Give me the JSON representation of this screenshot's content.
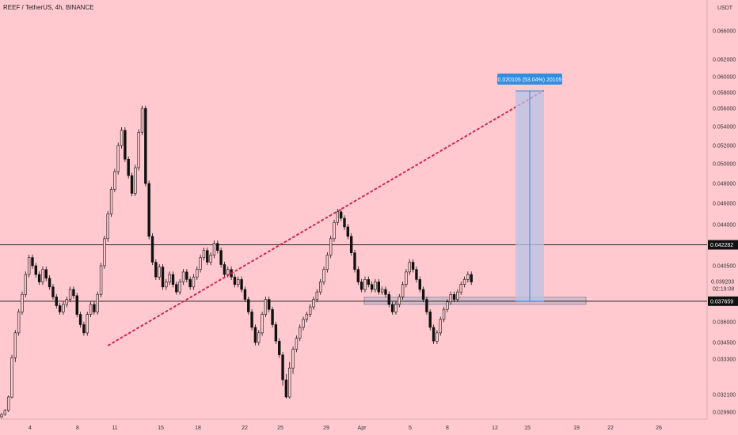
{
  "header": {
    "title": "REEF / TetherUS, 4h, BINANCE"
  },
  "colors": {
    "background": "#ffc9cf",
    "candle": "#111111",
    "trendline": "#d4224b",
    "measure_fill": "#b7c3e6",
    "measure_line": "#2f8fe0",
    "label_bg": "#2f8fe0",
    "support_box": "#c8b4c8"
  },
  "chart_data": {
    "type": "candlestick",
    "title": "REEF / TetherUS, 4h, BINANCE",
    "y_axis_unit": "USDT",
    "y_ticks": [
      0.0299,
      0.0321,
      0.0333,
      0.0345,
      0.036,
      0.0405,
      0.044,
      0.046,
      0.048,
      0.05,
      0.052,
      0.054,
      0.056,
      0.058,
      0.06,
      0.062,
      0.066
    ],
    "y_tick_labels": [
      "0.029900",
      "0.032100",
      "0.033300",
      "0.034500",
      "0.036000",
      "0.040500",
      "0.044000",
      "0.046000",
      "0.048000",
      "0.050000",
      "0.052000",
      "0.054000",
      "0.056000",
      "0.058000",
      "0.060000",
      "0.062000",
      "0.066000"
    ],
    "x_tick_labels": [
      "4",
      "8",
      "11",
      "15",
      "18",
      "22",
      "25",
      "29",
      "Apr",
      "5",
      "8",
      "12",
      "15",
      "19",
      "22",
      "26"
    ],
    "horizontal_levels": [
      {
        "value": 0.042282,
        "label": "0.042282"
      },
      {
        "value": 0.037659,
        "label": "0.037659"
      }
    ],
    "last_price": {
      "value": 0.039203,
      "label": "0.039203",
      "countdown": "02:19:08"
    },
    "measure_label": "0.020105 (53.04%) 20105",
    "trendline": {
      "from": {
        "date": "11",
        "price": 0.0343
      },
      "to": {
        "date": "16",
        "price": 0.0582
      }
    },
    "candles_close_path": [
      [
        0.0293,
        0.0296
      ],
      [
        0.0296,
        0.0301
      ],
      [
        0.0301,
        0.0318
      ],
      [
        0.0318,
        0.0334
      ],
      [
        0.0334,
        0.0352
      ],
      [
        0.0352,
        0.0368
      ],
      [
        0.0368,
        0.0382
      ],
      [
        0.0382,
        0.0398
      ],
      [
        0.0398,
        0.0412
      ],
      [
        0.0412,
        0.0405
      ],
      [
        0.0405,
        0.0398
      ],
      [
        0.0398,
        0.0392
      ],
      [
        0.0392,
        0.0402
      ],
      [
        0.0402,
        0.0395
      ],
      [
        0.0395,
        0.0388
      ],
      [
        0.0388,
        0.038
      ],
      [
        0.038,
        0.0373
      ],
      [
        0.0373,
        0.0368
      ],
      [
        0.0368,
        0.0374
      ],
      [
        0.0374,
        0.0378
      ],
      [
        0.0378,
        0.0386
      ],
      [
        0.0386,
        0.0381
      ],
      [
        0.0381,
        0.0366
      ],
      [
        0.0366,
        0.0358
      ],
      [
        0.0358,
        0.0352
      ],
      [
        0.0352,
        0.0366
      ],
      [
        0.0366,
        0.0374
      ],
      [
        0.0374,
        0.0368
      ],
      [
        0.0368,
        0.0382
      ],
      [
        0.0382,
        0.0405
      ],
      [
        0.0405,
        0.0428
      ],
      [
        0.0428,
        0.045
      ],
      [
        0.045,
        0.0474
      ],
      [
        0.0474,
        0.0492
      ],
      [
        0.0492,
        0.052
      ],
      [
        0.052,
        0.0536
      ],
      [
        0.0536,
        0.0505
      ],
      [
        0.0505,
        0.0488
      ],
      [
        0.0488,
        0.047
      ],
      [
        0.047,
        0.0496
      ],
      [
        0.0496,
        0.0534
      ],
      [
        0.0534,
        0.056
      ],
      [
        0.056,
        0.048
      ],
      [
        0.048,
        0.043
      ],
      [
        0.043,
        0.0408
      ],
      [
        0.0408,
        0.0396
      ],
      [
        0.0396,
        0.0404
      ],
      [
        0.0404,
        0.0388
      ],
      [
        0.0388,
        0.0392
      ],
      [
        0.0392,
        0.0398
      ],
      [
        0.0398,
        0.039
      ],
      [
        0.039,
        0.0384
      ],
      [
        0.0384,
        0.0392
      ],
      [
        0.0392,
        0.04
      ],
      [
        0.04,
        0.0394
      ],
      [
        0.0394,
        0.0388
      ],
      [
        0.0388,
        0.0396
      ],
      [
        0.0396,
        0.0402
      ],
      [
        0.0402,
        0.0412
      ],
      [
        0.0412,
        0.0418
      ],
      [
        0.0418,
        0.0408
      ],
      [
        0.0408,
        0.0414
      ],
      [
        0.0414,
        0.0424
      ],
      [
        0.0424,
        0.0418
      ],
      [
        0.0418,
        0.0406
      ],
      [
        0.0406,
        0.0398
      ],
      [
        0.0398,
        0.0402
      ],
      [
        0.0402,
        0.0396
      ],
      [
        0.0396,
        0.039
      ],
      [
        0.039,
        0.0394
      ],
      [
        0.0394,
        0.0386
      ],
      [
        0.0386,
        0.0378
      ],
      [
        0.0378,
        0.0368
      ],
      [
        0.0368,
        0.0356
      ],
      [
        0.0356,
        0.0345
      ],
      [
        0.0345,
        0.0352
      ],
      [
        0.0352,
        0.0366
      ],
      [
        0.0366,
        0.0378
      ],
      [
        0.0378,
        0.037
      ],
      [
        0.037,
        0.0358
      ],
      [
        0.0358,
        0.0346
      ],
      [
        0.0346,
        0.0336
      ],
      [
        0.0336,
        0.0326
      ],
      [
        0.0326,
        0.0318
      ],
      [
        0.0318,
        0.033
      ],
      [
        0.033,
        0.034
      ],
      [
        0.034,
        0.0348
      ],
      [
        0.0348,
        0.0356
      ],
      [
        0.0356,
        0.0362
      ],
      [
        0.0362,
        0.0366
      ],
      [
        0.0366,
        0.0372
      ],
      [
        0.0372,
        0.0378
      ],
      [
        0.0378,
        0.0384
      ],
      [
        0.0384,
        0.0392
      ],
      [
        0.0392,
        0.0402
      ],
      [
        0.0402,
        0.0414
      ],
      [
        0.0414,
        0.0428
      ],
      [
        0.0428,
        0.0442
      ],
      [
        0.0442,
        0.0452
      ],
      [
        0.0452,
        0.0446
      ],
      [
        0.0446,
        0.0438
      ],
      [
        0.0438,
        0.043
      ],
      [
        0.043,
        0.0416
      ],
      [
        0.0416,
        0.0402
      ],
      [
        0.0402,
        0.0392
      ],
      [
        0.0392,
        0.0386
      ],
      [
        0.0386,
        0.0394
      ],
      [
        0.0394,
        0.039
      ],
      [
        0.039,
        0.0386
      ],
      [
        0.0386,
        0.0392
      ],
      [
        0.0392,
        0.0384
      ],
      [
        0.0384,
        0.0386
      ],
      [
        0.0386,
        0.0382
      ],
      [
        0.0382,
        0.0374
      ],
      [
        0.0374,
        0.0368
      ],
      [
        0.0368,
        0.0374
      ],
      [
        0.0374,
        0.038
      ],
      [
        0.038,
        0.039
      ],
      [
        0.039,
        0.04
      ],
      [
        0.04,
        0.0408
      ],
      [
        0.0408,
        0.0402
      ],
      [
        0.0402,
        0.0394
      ],
      [
        0.0394,
        0.0386
      ],
      [
        0.0386,
        0.0378
      ],
      [
        0.0378,
        0.0368
      ],
      [
        0.0368,
        0.0356
      ],
      [
        0.0356,
        0.0346
      ],
      [
        0.0346,
        0.0352
      ],
      [
        0.0352,
        0.0362
      ],
      [
        0.0362,
        0.037
      ],
      [
        0.037,
        0.0376
      ],
      [
        0.0376,
        0.0382
      ],
      [
        0.0382,
        0.0378
      ],
      [
        0.0378,
        0.0384
      ],
      [
        0.0384,
        0.039
      ],
      [
        0.039,
        0.0394
      ],
      [
        0.0394,
        0.0398
      ],
      [
        0.0398,
        0.0392
      ]
    ]
  }
}
